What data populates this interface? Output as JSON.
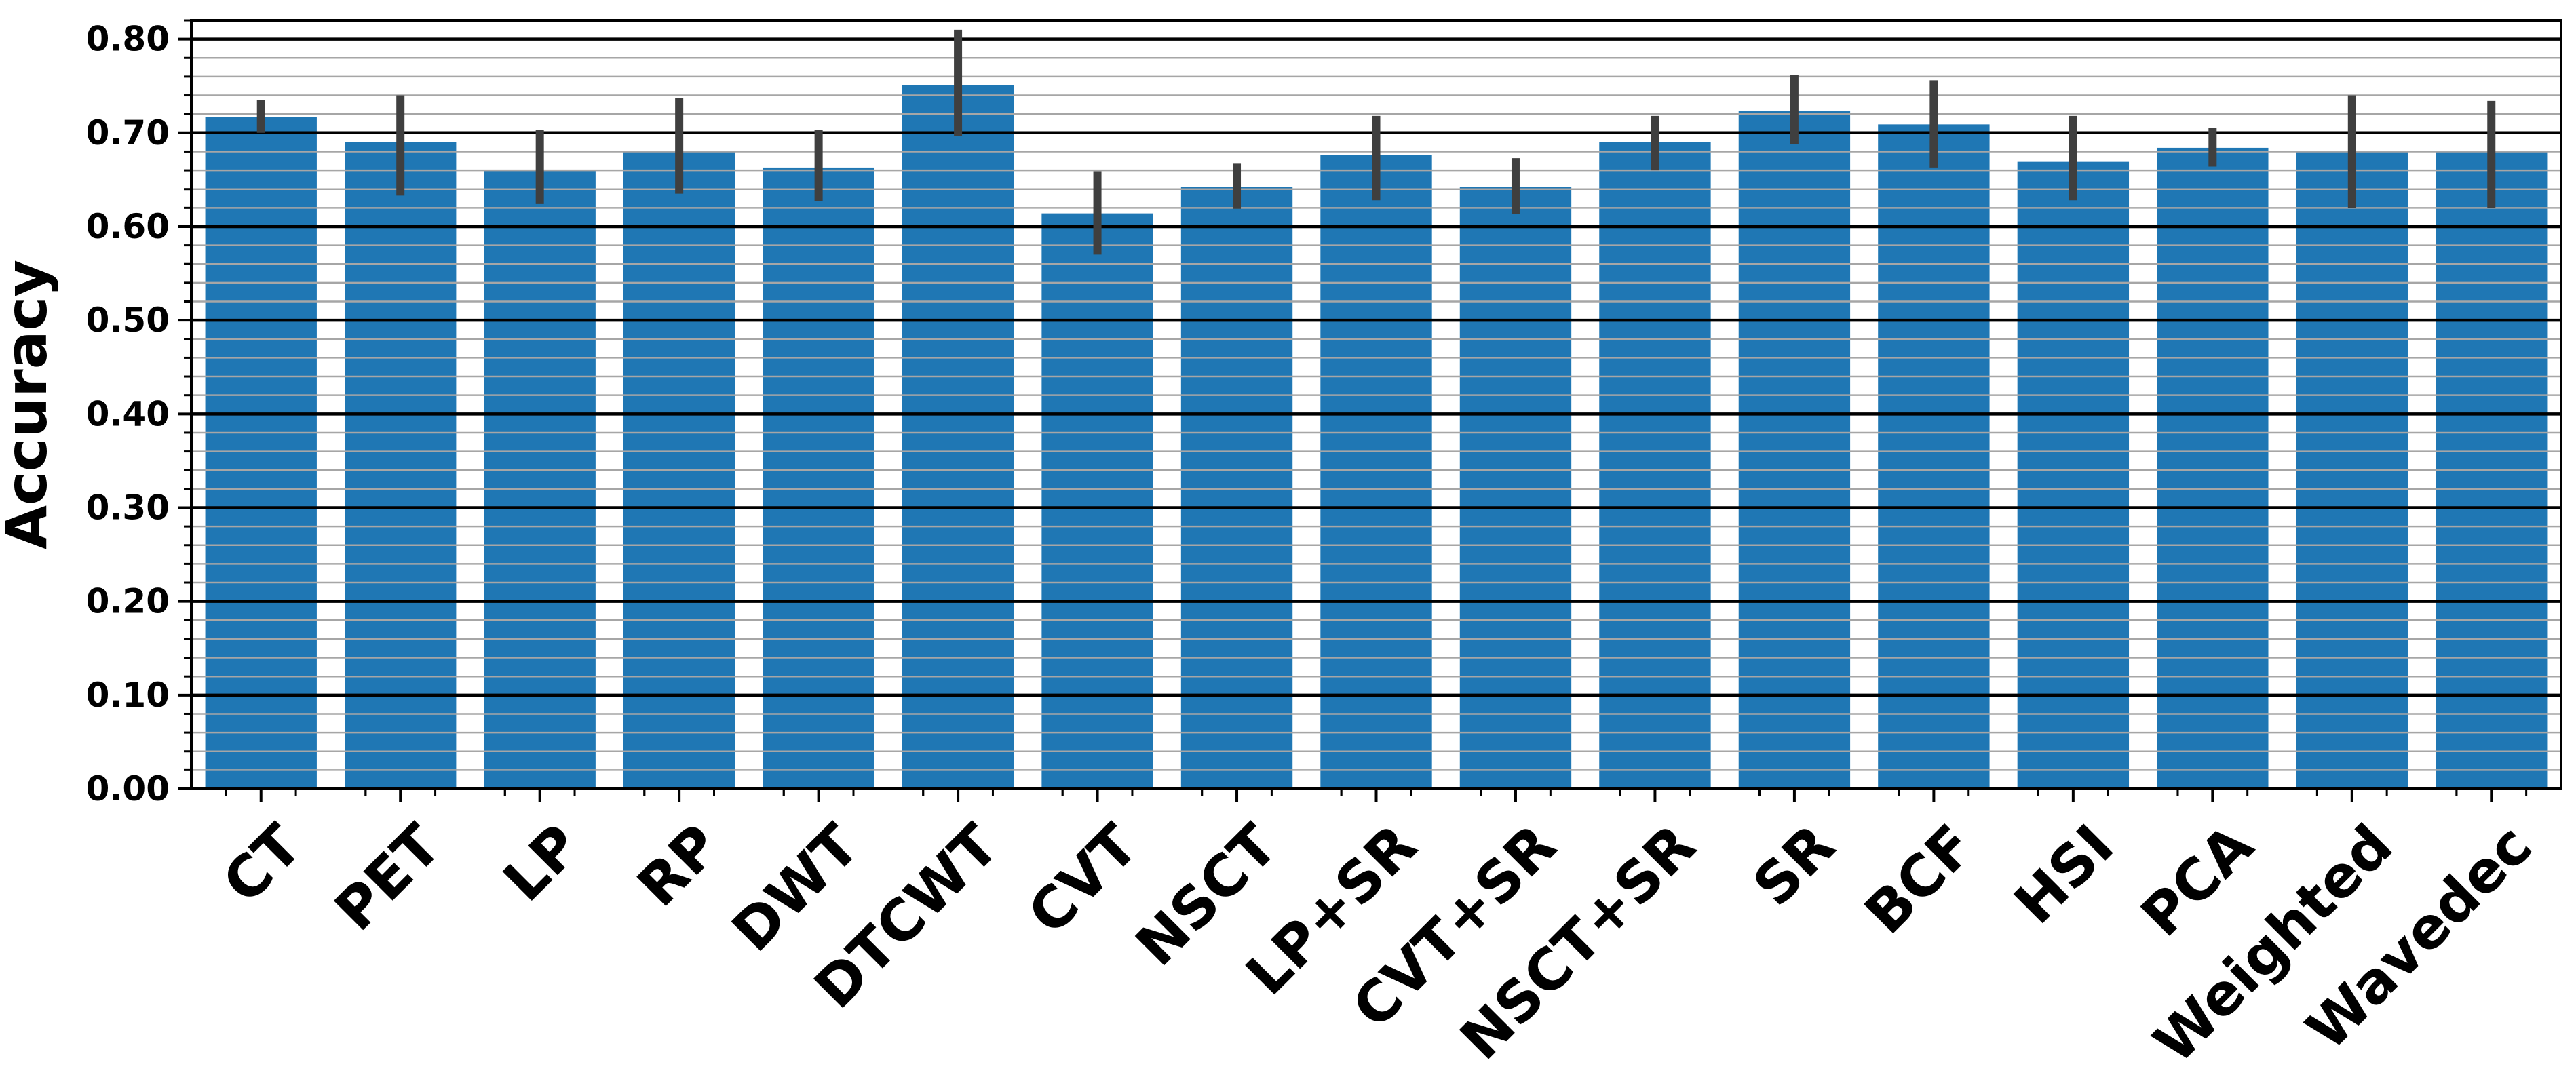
{
  "chart_data": {
    "type": "bar",
    "title": "",
    "xlabel": "",
    "ylabel": "Accuracy",
    "ylim": [
      0,
      0.82
    ],
    "yticks": [
      "0.00",
      "0.10",
      "0.20",
      "0.30",
      "0.40",
      "0.50",
      "0.60",
      "0.70",
      "0.80"
    ],
    "grid": {
      "major": true,
      "minor": true
    },
    "categories": [
      "CT",
      "PET",
      "LP",
      "RP",
      "DWT",
      "DTCWT",
      "CVT",
      "NSCT",
      "LP+SR",
      "CVT+SR",
      "NSCT+SR",
      "SR",
      "BCF",
      "HSI",
      "PCA",
      "Weighted",
      "Wavedec"
    ],
    "values": [
      0.717,
      0.69,
      0.66,
      0.681,
      0.663,
      0.751,
      0.614,
      0.642,
      0.676,
      0.642,
      0.69,
      0.723,
      0.709,
      0.669,
      0.684,
      0.681,
      0.681
    ],
    "error_bars": [
      [
        0.7,
        0.735
      ],
      [
        0.633,
        0.74
      ],
      [
        0.624,
        0.703
      ],
      [
        0.635,
        0.737
      ],
      [
        0.627,
        0.703
      ],
      [
        0.697,
        0.81
      ],
      [
        0.57,
        0.659
      ],
      [
        0.619,
        0.667
      ],
      [
        0.628,
        0.718
      ],
      [
        0.613,
        0.673
      ],
      [
        0.66,
        0.718
      ],
      [
        0.688,
        0.762
      ],
      [
        0.663,
        0.756
      ],
      [
        0.628,
        0.718
      ],
      [
        0.664,
        0.705
      ],
      [
        0.62,
        0.74
      ],
      [
        0.62,
        0.734
      ]
    ],
    "colors": {
      "bar": "#1f77b4",
      "error": "#3f3f3f",
      "major_grid": "#000000",
      "minor_grid": "#a6a6a6"
    }
  }
}
